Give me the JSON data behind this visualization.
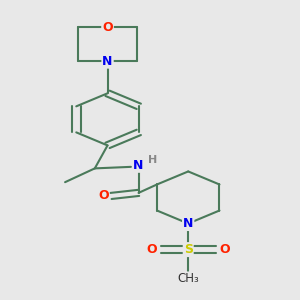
{
  "background_color": "#e8e8e8",
  "bond_color": "#4a7a5a",
  "bond_width": 1.5,
  "atom_colors": {
    "O": "#ff2200",
    "N": "#0000ee",
    "S": "#cccc00",
    "C": "#333333",
    "H": "#888888"
  },
  "figsize": [
    3.0,
    3.0
  ],
  "dpi": 100
}
